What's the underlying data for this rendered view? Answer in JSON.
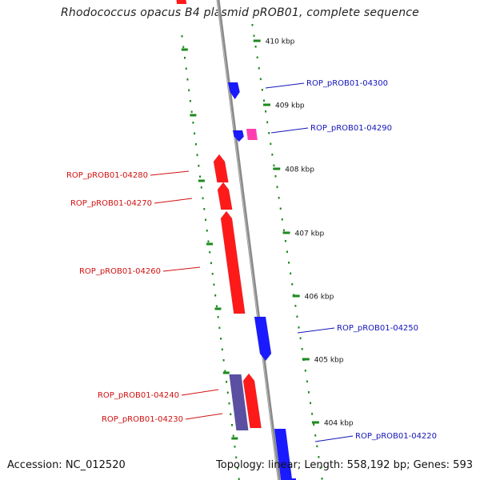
{
  "title": "Rhodococcus opacus B4 plasmid pROB01, complete sequence",
  "footer": {
    "accession": "Accession: NC_012520",
    "stats": "Topology: linear; Length: 558,192 bp; Genes: 593"
  },
  "colors": {
    "plus_strand": "#1a1aff",
    "minus_strand": "#ff1a1a",
    "rna": "#ff3fb0",
    "pseudo": "#5a4fa0",
    "backbone": "#8a8a8a",
    "tick": "#1e8a1e"
  },
  "ruler": [
    {
      "label": "410 kbp"
    },
    {
      "label": "409 kbp"
    },
    {
      "label": "408 kbp"
    },
    {
      "label": "407 kbp"
    },
    {
      "label": "406 kbp"
    },
    {
      "label": "405 kbp"
    },
    {
      "label": "404 kbp"
    }
  ],
  "genes": [
    {
      "label": "ROP_pROB01-04300",
      "strand": "plus"
    },
    {
      "label": "ROP_pROB01-04290",
      "strand": "plus"
    },
    {
      "label": "ROP_pROB01-04280",
      "strand": "minus"
    },
    {
      "label": "ROP_pROB01-04270",
      "strand": "minus"
    },
    {
      "label": "ROP_pROB01-04260",
      "strand": "minus"
    },
    {
      "label": "ROP_pROB01-04250",
      "strand": "plus"
    },
    {
      "label": "ROP_pROB01-04240",
      "strand": "minus"
    },
    {
      "label": "ROP_pROB01-04230",
      "strand": "minus"
    },
    {
      "label": "ROP_pROB01-04220",
      "strand": "plus"
    }
  ]
}
